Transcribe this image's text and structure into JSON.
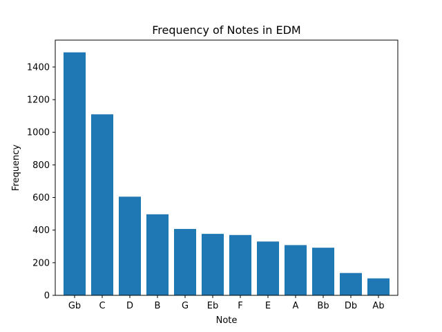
{
  "chart_data": {
    "type": "bar",
    "title": "Frequency of Notes in EDM",
    "xlabel": "Note",
    "ylabel": "Frequency",
    "categories": [
      "Gb",
      "C",
      "D",
      "B",
      "G",
      "Eb",
      "F",
      "E",
      "A",
      "Bb",
      "Db",
      "Ab"
    ],
    "values": [
      1490,
      1110,
      605,
      497,
      407,
      377,
      370,
      330,
      308,
      292,
      137,
      104
    ],
    "ylim": [
      0,
      1565
    ],
    "yticks": [
      0,
      200,
      400,
      600,
      800,
      1000,
      1200,
      1400
    ],
    "grid": false,
    "bar_color": "#1f77b4"
  }
}
